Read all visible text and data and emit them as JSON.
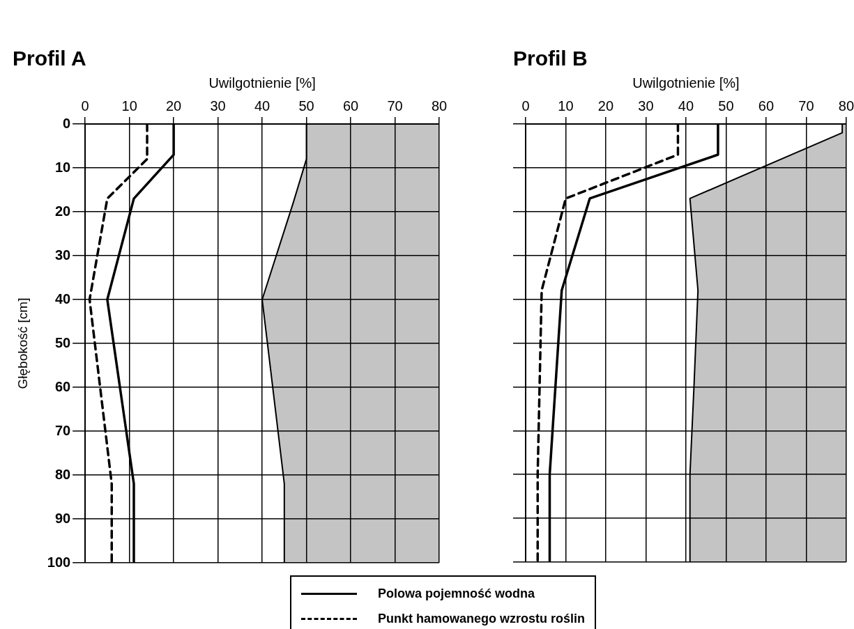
{
  "chart_data": [
    {
      "type": "line",
      "title": "Profil A",
      "xlabel": "Uwilgotnienie [%]",
      "ylabel": "Głębokość [cm]",
      "xlim": [
        0,
        80
      ],
      "xticks": [
        0,
        10,
        20,
        30,
        40,
        50,
        60,
        70,
        80
      ],
      "ylim": [
        100,
        0
      ],
      "yticks": [
        0,
        10,
        20,
        30,
        40,
        50,
        60,
        70,
        80,
        90,
        100
      ],
      "grid": true,
      "legend": "bottom",
      "series": [
        {
          "type": "area",
          "color": "#c4c4c4",
          "x": [
            80,
            50,
            50,
            47,
            40,
            45,
            45,
            80
          ],
          "values": [
            0,
            0,
            8,
            18,
            40,
            82,
            100,
            100
          ]
        },
        {
          "name": "Polowa pojemność wodna",
          "color": "#000000",
          "line_style": "solid",
          "x": [
            20,
            20,
            11,
            5,
            11,
            11
          ],
          "values": [
            0,
            7,
            17,
            40,
            82,
            100
          ]
        },
        {
          "name": "Punkt hamowanego wzrostu roślin",
          "color": "#000000",
          "line_style": "dashed",
          "x": [
            14,
            14,
            5,
            1,
            6,
            6
          ],
          "values": [
            0,
            8,
            17,
            40,
            82,
            100
          ]
        }
      ]
    },
    {
      "type": "line",
      "title": "Profil B",
      "xlabel": "Uwilgotnienie [%]",
      "xlim": [
        0,
        80
      ],
      "xticks": [
        0,
        10,
        20,
        30,
        40,
        50,
        60,
        70,
        80
      ],
      "ylim": [
        100,
        0
      ],
      "yticks": [
        0,
        10,
        20,
        30,
        40,
        50,
        60,
        70,
        80,
        90,
        100
      ],
      "grid": true,
      "tick_labels": "x",
      "series": [
        {
          "type": "area",
          "color": "#c4c4c4",
          "x": [
            80,
            79,
            79,
            41,
            43,
            42,
            41,
            41,
            80
          ],
          "values": [
            0,
            0,
            2,
            17,
            38,
            60,
            80,
            100,
            100
          ]
        },
        {
          "color": "#000000",
          "line_style": "solid",
          "x": [
            48,
            48,
            16,
            9,
            6,
            6
          ],
          "values": [
            0,
            7,
            17,
            38,
            80,
            100
          ]
        },
        {
          "color": "#000000",
          "line_style": "dashed",
          "x": [
            38,
            38,
            10,
            4,
            3,
            3
          ],
          "values": [
            0,
            7,
            17,
            38,
            80,
            100
          ]
        }
      ]
    }
  ]
}
